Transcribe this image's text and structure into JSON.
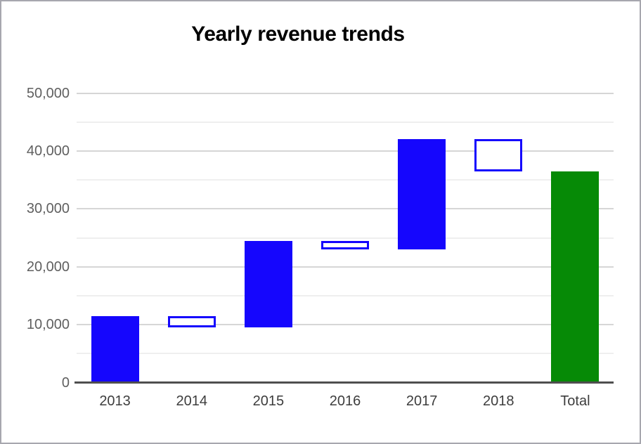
{
  "chart_data": {
    "type": "waterfall",
    "title": "Yearly revenue trends",
    "categories": [
      "2013",
      "2014",
      "2015",
      "2016",
      "2017",
      "2018",
      "Total"
    ],
    "series": [
      {
        "name": "2013",
        "start": 0,
        "end": 11500,
        "delta": 11500,
        "kind": "increase"
      },
      {
        "name": "2014",
        "start": 11500,
        "end": 9500,
        "delta": -2000,
        "kind": "decrease"
      },
      {
        "name": "2015",
        "start": 9500,
        "end": 24500,
        "delta": 15000,
        "kind": "increase"
      },
      {
        "name": "2016",
        "start": 24500,
        "end": 23000,
        "delta": -1500,
        "kind": "decrease"
      },
      {
        "name": "2017",
        "start": 23000,
        "end": 42000,
        "delta": 19000,
        "kind": "increase"
      },
      {
        "name": "2018",
        "start": 42000,
        "end": 36500,
        "delta": -5500,
        "kind": "decrease"
      },
      {
        "name": "Total",
        "start": 0,
        "end": 36500,
        "delta": 36500,
        "kind": "total"
      }
    ],
    "total_value": 36500,
    "y_ticks": [
      {
        "value": 0,
        "label": "0"
      },
      {
        "value": 10000,
        "label": "10,000"
      },
      {
        "value": 20000,
        "label": "20,000"
      },
      {
        "value": 30000,
        "label": "30,000"
      },
      {
        "value": 40000,
        "label": "40,000"
      },
      {
        "value": 50000,
        "label": "50,000"
      }
    ],
    "ylim": [
      0,
      50000
    ],
    "major_gridline_step": 10000,
    "minor_gridline_step": 5000,
    "grid": true,
    "legend": "none",
    "colors": {
      "increase": "#1506fd",
      "decrease_outline": "#1506fd",
      "decrease_fill": "#ffffff",
      "total": "#068a06"
    }
  }
}
